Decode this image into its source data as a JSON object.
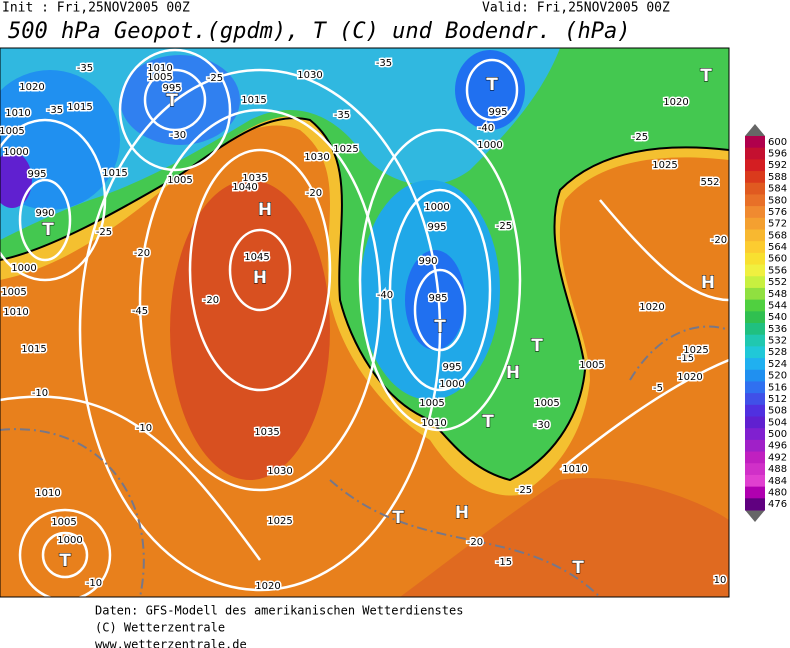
{
  "header": {
    "init": "Init : Fri,25NOV2005 00Z",
    "valid": "Valid: Fri,25NOV2005 00Z",
    "title": "500 hPa Geopot.(gpdm), T (C) und Bodendr. (hPa)"
  },
  "colorbar": {
    "labels": [
      600,
      596,
      592,
      588,
      584,
      580,
      576,
      572,
      568,
      564,
      560,
      556,
      552,
      548,
      544,
      540,
      536,
      532,
      528,
      524,
      520,
      516,
      512,
      508,
      504,
      500,
      496,
      492,
      488,
      484,
      480,
      476
    ],
    "colors": [
      "#b0004c",
      "#c41030",
      "#d41e22",
      "#da3a1c",
      "#e05a20",
      "#e87028",
      "#f08a30",
      "#f4a030",
      "#f8b830",
      "#fccc30",
      "#f8e030",
      "#f0f040",
      "#c8f040",
      "#90e040",
      "#50d040",
      "#30c050",
      "#20c080",
      "#20c8b0",
      "#20c8d8",
      "#20b0f0",
      "#2090f0",
      "#3070f0",
      "#4050e8",
      "#5030e0",
      "#6020d0",
      "#8020d0",
      "#a020c8",
      "#c020c0",
      "#d030c8",
      "#e040d0",
      "#b000b0",
      "#600080"
    ]
  },
  "map_labels": [
    "-35",
    "1020",
    "1010",
    "1005",
    "995",
    "T",
    "-25",
    "1030",
    "-35",
    "T",
    "T",
    "1020",
    "1010",
    "-35",
    "1015",
    "1015",
    "-30",
    "1005",
    "-35",
    "995",
    "-40",
    "-25",
    "1000",
    "1030",
    "1025",
    "1000",
    "995",
    "1015",
    "1005",
    "1035",
    "1040",
    "H",
    "-20",
    "1025",
    "552",
    "990",
    "T",
    "-25",
    "1000",
    "995",
    "-25",
    "-20",
    "1045",
    "H",
    "990",
    "1000",
    "-40",
    "985",
    "T",
    "1005",
    "1010",
    "-45",
    "-20",
    "H",
    "-20",
    "1020",
    "1015",
    "T",
    "1005",
    "995",
    "1000",
    "H",
    "-15",
    "1025",
    "1020",
    "-10",
    "-5",
    "1005",
    "1005",
    "T",
    "1010",
    "-30",
    "1035",
    "-10",
    "1030",
    "1010",
    "1010",
    "-25",
    "T",
    "H",
    "1005",
    "1000",
    "1025",
    "-20",
    "T",
    "-15",
    "T",
    "-10",
    "1020",
    "10"
  ],
  "footer": [
    "Daten: GFS-Modell des amerikanischen Wetterdienstes",
    "(C) Wetterzentrale",
    "www.wetterzentrale.de"
  ]
}
